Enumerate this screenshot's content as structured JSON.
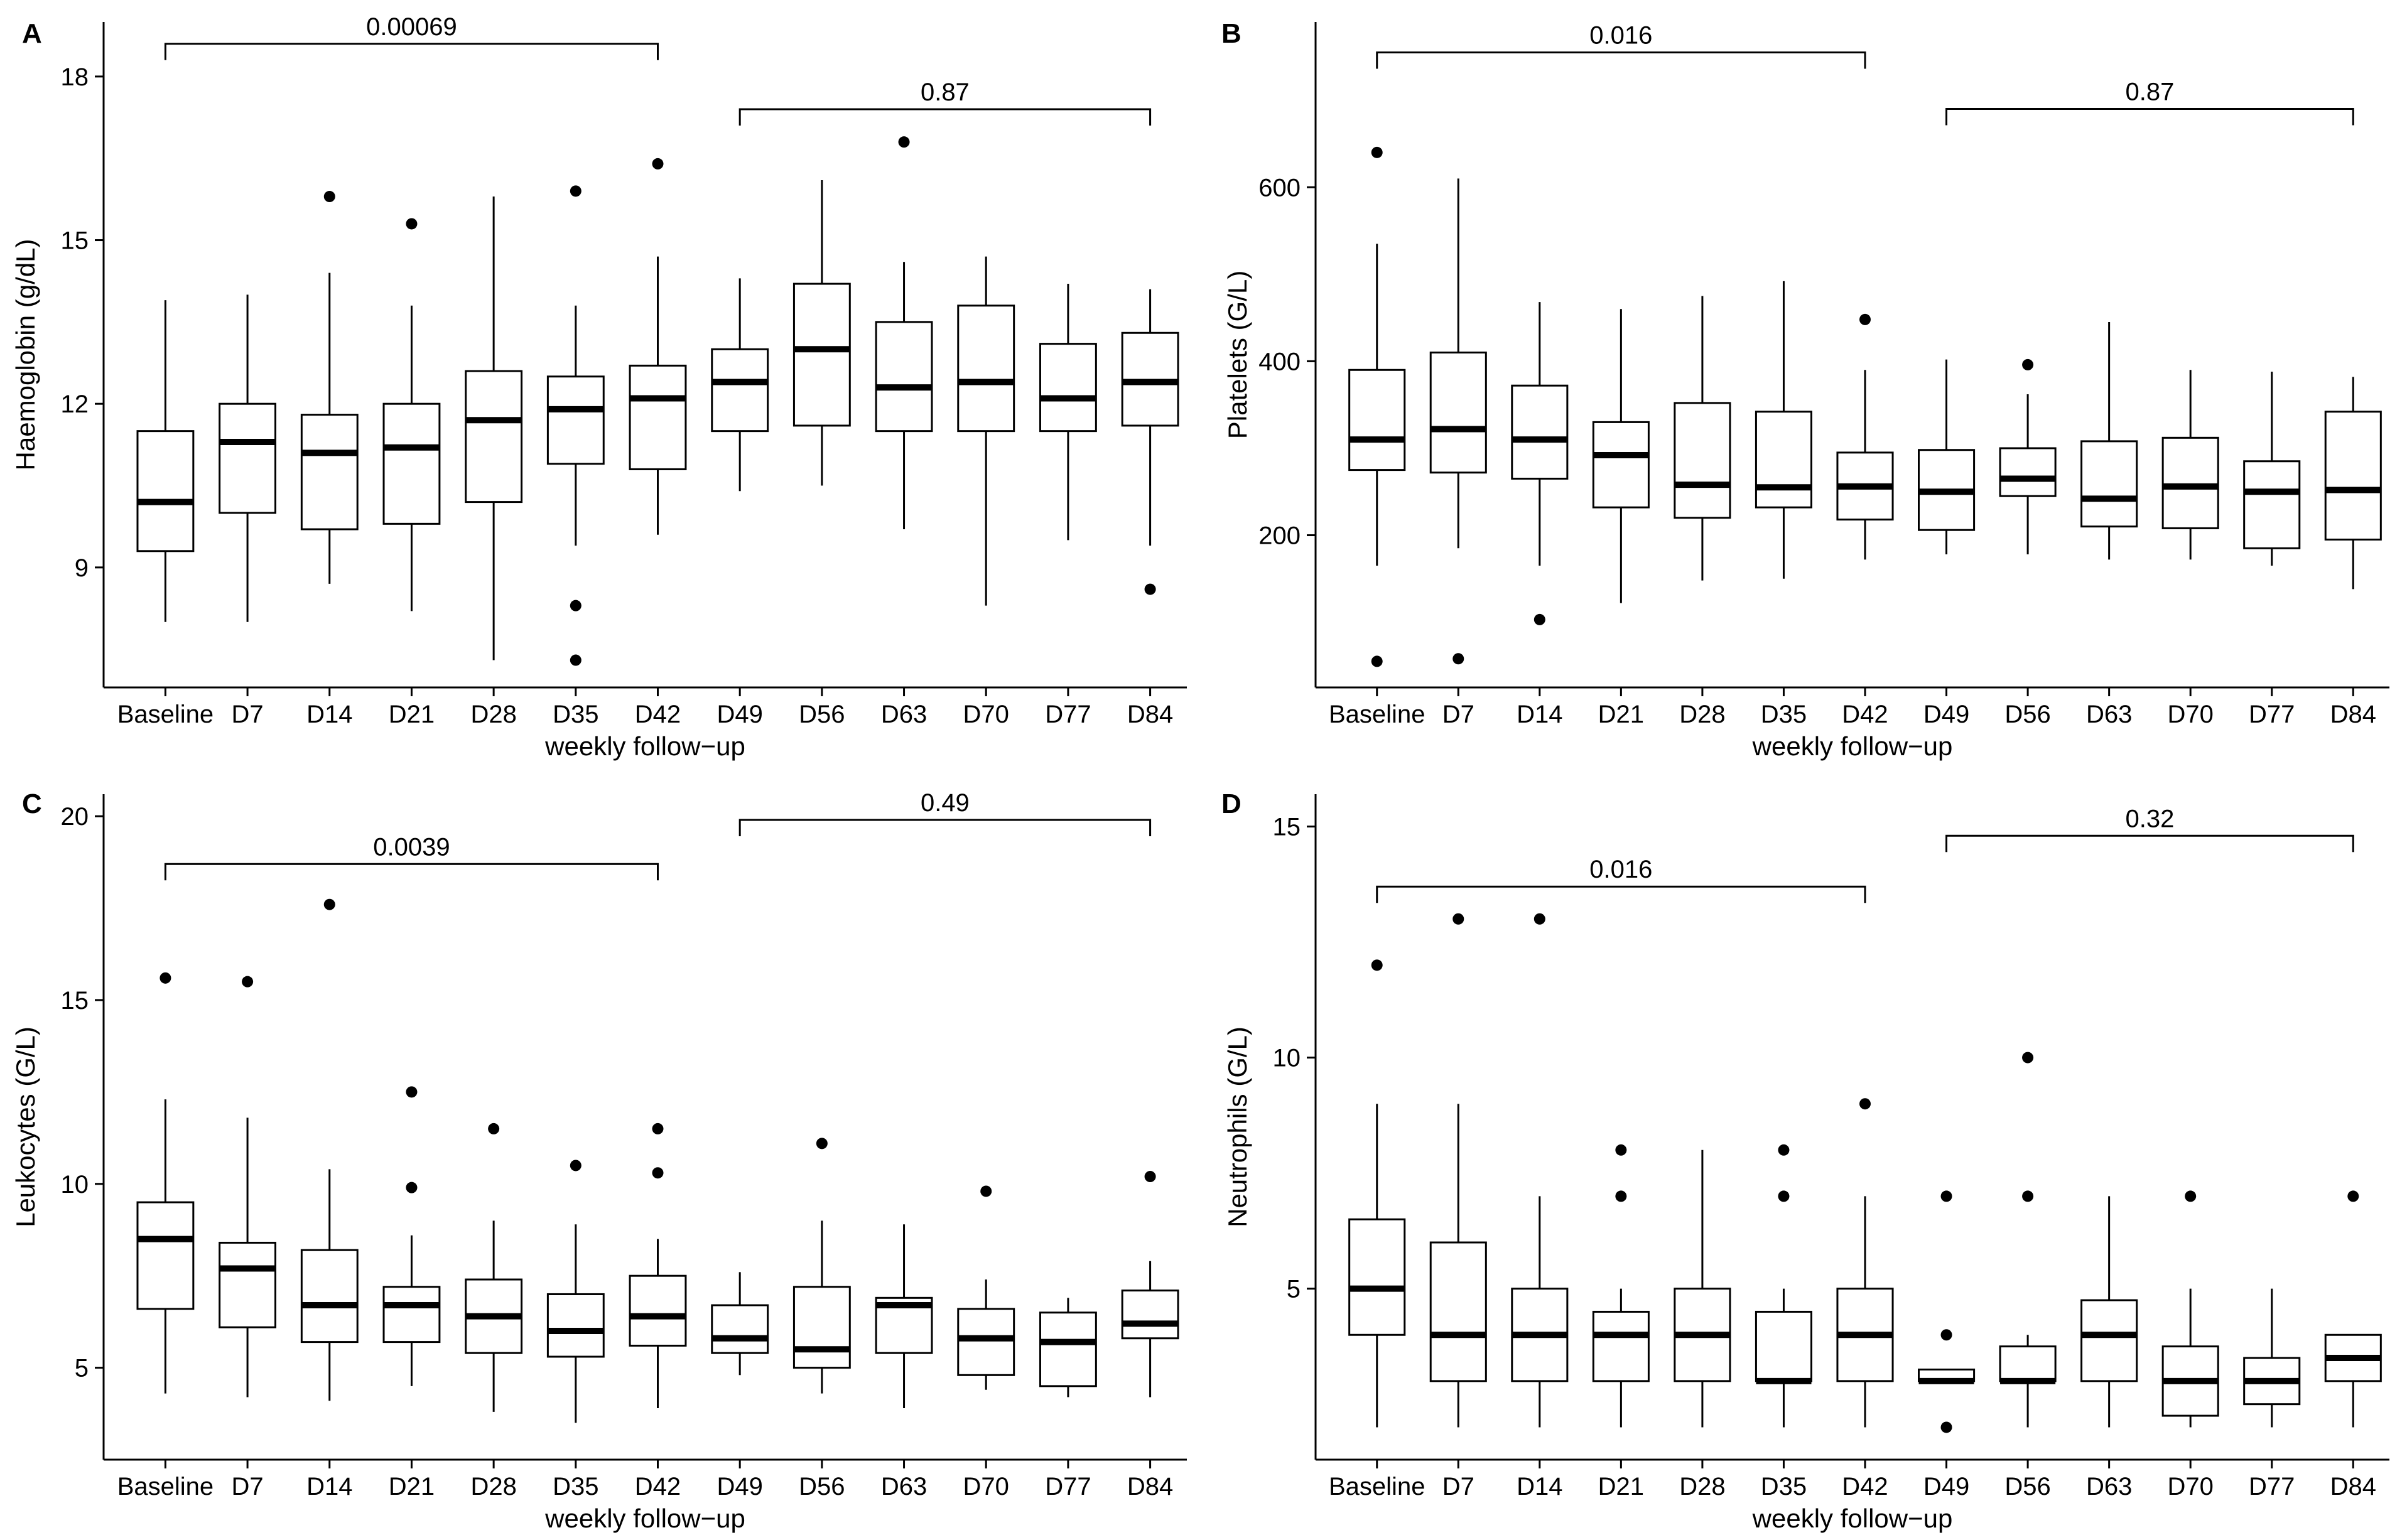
{
  "chart_data": [
    {
      "type": "box",
      "panel": "A",
      "xlabel": "weekly follow−up",
      "ylabel": "Haemoglobin (g/dL)",
      "categories": [
        "Baseline",
        "D7",
        "D14",
        "D21",
        "D28",
        "D35",
        "D42",
        "D49",
        "D56",
        "D63",
        "D70",
        "D77",
        "D84"
      ],
      "ylim": [
        6.8,
        19.0
      ],
      "yticks": [
        9,
        12,
        15,
        18
      ],
      "boxes": [
        {
          "min": 8.0,
          "q1": 9.3,
          "median": 10.2,
          "q3": 11.5,
          "max": 13.9,
          "outliers": []
        },
        {
          "min": 8.0,
          "q1": 10.0,
          "median": 11.3,
          "q3": 12.0,
          "max": 14.0,
          "outliers": []
        },
        {
          "min": 8.7,
          "q1": 9.7,
          "median": 11.1,
          "q3": 11.8,
          "max": 14.4,
          "outliers": [
            15.8
          ]
        },
        {
          "min": 8.2,
          "q1": 9.8,
          "median": 11.2,
          "q3": 12.0,
          "max": 13.8,
          "outliers": [
            15.3
          ]
        },
        {
          "min": 7.3,
          "q1": 10.2,
          "median": 11.7,
          "q3": 12.6,
          "max": 15.8,
          "outliers": []
        },
        {
          "min": 9.4,
          "q1": 10.9,
          "median": 11.9,
          "q3": 12.5,
          "max": 13.8,
          "outliers": [
            15.9,
            8.3,
            7.3
          ]
        },
        {
          "min": 9.6,
          "q1": 10.8,
          "median": 12.1,
          "q3": 12.7,
          "max": 14.7,
          "outliers": [
            16.4
          ]
        },
        {
          "min": 10.4,
          "q1": 11.5,
          "median": 12.4,
          "q3": 13.0,
          "max": 14.3,
          "outliers": []
        },
        {
          "min": 10.5,
          "q1": 11.6,
          "median": 13.0,
          "q3": 14.2,
          "max": 16.1,
          "outliers": []
        },
        {
          "min": 9.7,
          "q1": 11.5,
          "median": 12.3,
          "q3": 13.5,
          "max": 14.6,
          "outliers": [
            16.8
          ]
        },
        {
          "min": 8.3,
          "q1": 11.5,
          "median": 12.4,
          "q3": 13.8,
          "max": 14.7,
          "outliers": []
        },
        {
          "min": 9.5,
          "q1": 11.5,
          "median": 12.1,
          "q3": 13.1,
          "max": 14.2,
          "outliers": []
        },
        {
          "min": 9.4,
          "q1": 11.6,
          "median": 12.4,
          "q3": 13.3,
          "max": 14.1,
          "outliers": [
            8.6
          ]
        }
      ],
      "comparisons": [
        {
          "from": "Baseline",
          "to": "D42",
          "label": "0.00069",
          "y": 18.6
        },
        {
          "from": "D49",
          "to": "D84",
          "label": "0.87",
          "y": 17.4
        }
      ]
    },
    {
      "type": "box",
      "panel": "B",
      "xlabel": "weekly follow−up",
      "ylabel": "Platelets (G/L)",
      "categories": [
        "Baseline",
        "D7",
        "D14",
        "D21",
        "D28",
        "D35",
        "D42",
        "D49",
        "D56",
        "D63",
        "D70",
        "D77",
        "D84"
      ],
      "ylim": [
        25,
        790
      ],
      "yticks": [
        200,
        400,
        600
      ],
      "boxes": [
        {
          "min": 165,
          "q1": 275,
          "median": 310,
          "q3": 390,
          "max": 535,
          "outliers": [
            640,
            55
          ]
        },
        {
          "min": 185,
          "q1": 272,
          "median": 322,
          "q3": 410,
          "max": 610,
          "outliers": [
            58
          ]
        },
        {
          "min": 165,
          "q1": 265,
          "median": 310,
          "q3": 372,
          "max": 468,
          "outliers": [
            103
          ]
        },
        {
          "min": 122,
          "q1": 232,
          "median": 292,
          "q3": 330,
          "max": 460,
          "outliers": []
        },
        {
          "min": 148,
          "q1": 220,
          "median": 258,
          "q3": 352,
          "max": 475,
          "outliers": []
        },
        {
          "min": 150,
          "q1": 232,
          "median": 255,
          "q3": 342,
          "max": 492,
          "outliers": []
        },
        {
          "min": 172,
          "q1": 218,
          "median": 256,
          "q3": 295,
          "max": 390,
          "outliers": [
            448
          ]
        },
        {
          "min": 178,
          "q1": 206,
          "median": 250,
          "q3": 298,
          "max": 402,
          "outliers": []
        },
        {
          "min": 178,
          "q1": 245,
          "median": 265,
          "q3": 300,
          "max": 362,
          "outliers": [
            396
          ]
        },
        {
          "min": 172,
          "q1": 210,
          "median": 242,
          "q3": 308,
          "max": 445,
          "outliers": []
        },
        {
          "min": 172,
          "q1": 208,
          "median": 256,
          "q3": 312,
          "max": 390,
          "outliers": []
        },
        {
          "min": 165,
          "q1": 185,
          "median": 250,
          "q3": 285,
          "max": 388,
          "outliers": []
        },
        {
          "min": 138,
          "q1": 195,
          "median": 252,
          "q3": 342,
          "max": 382,
          "outliers": []
        }
      ],
      "comparisons": [
        {
          "from": "Baseline",
          "to": "D42",
          "label": "0.016",
          "y": 755
        },
        {
          "from": "D49",
          "to": "D84",
          "label": "0.87",
          "y": 690
        }
      ]
    },
    {
      "type": "box",
      "panel": "C",
      "xlabel": "weekly follow−up",
      "ylabel": "Leukocytes (G/L)",
      "categories": [
        "Baseline",
        "D7",
        "D14",
        "D21",
        "D28",
        "D35",
        "D42",
        "D49",
        "D56",
        "D63",
        "D70",
        "D77",
        "D84"
      ],
      "ylim": [
        2.5,
        20.6
      ],
      "yticks": [
        5,
        10,
        15,
        20
      ],
      "boxes": [
        {
          "min": 4.3,
          "q1": 6.6,
          "median": 8.5,
          "q3": 9.5,
          "max": 12.3,
          "outliers": [
            15.6
          ]
        },
        {
          "min": 4.2,
          "q1": 6.1,
          "median": 7.7,
          "q3": 8.4,
          "max": 11.8,
          "outliers": [
            15.5
          ]
        },
        {
          "min": 4.1,
          "q1": 5.7,
          "median": 6.7,
          "q3": 8.2,
          "max": 10.4,
          "outliers": [
            17.6
          ]
        },
        {
          "min": 4.5,
          "q1": 5.7,
          "median": 6.7,
          "q3": 7.2,
          "max": 8.6,
          "outliers": [
            12.5,
            9.9
          ]
        },
        {
          "min": 3.8,
          "q1": 5.4,
          "median": 6.4,
          "q3": 7.4,
          "max": 9.0,
          "outliers": [
            11.5
          ]
        },
        {
          "min": 3.5,
          "q1": 5.3,
          "median": 6.0,
          "q3": 7.0,
          "max": 8.9,
          "outliers": [
            10.5
          ]
        },
        {
          "min": 3.9,
          "q1": 5.6,
          "median": 6.4,
          "q3": 7.5,
          "max": 8.5,
          "outliers": [
            11.5,
            10.3
          ]
        },
        {
          "min": 4.8,
          "q1": 5.4,
          "median": 5.8,
          "q3": 6.7,
          "max": 7.6,
          "outliers": []
        },
        {
          "min": 4.3,
          "q1": 5.0,
          "median": 5.5,
          "q3": 7.2,
          "max": 9.0,
          "outliers": [
            11.1
          ]
        },
        {
          "min": 3.9,
          "q1": 5.4,
          "median": 6.7,
          "q3": 6.9,
          "max": 8.9,
          "outliers": []
        },
        {
          "min": 4.4,
          "q1": 4.8,
          "median": 5.8,
          "q3": 6.6,
          "max": 7.4,
          "outliers": [
            9.8
          ]
        },
        {
          "min": 4.2,
          "q1": 4.5,
          "median": 5.7,
          "q3": 6.5,
          "max": 6.9,
          "outliers": []
        },
        {
          "min": 4.2,
          "q1": 5.8,
          "median": 6.2,
          "q3": 7.1,
          "max": 7.9,
          "outliers": [
            10.2
          ]
        }
      ],
      "comparisons": [
        {
          "from": "Baseline",
          "to": "D42",
          "label": "0.0039",
          "y": 18.7
        },
        {
          "from": "D49",
          "to": "D84",
          "label": "0.49",
          "y": 19.9
        }
      ]
    },
    {
      "type": "box",
      "panel": "D",
      "xlabel": "weekly follow−up",
      "ylabel": "Neutrophils (G/L)",
      "categories": [
        "Baseline",
        "D7",
        "D14",
        "D21",
        "D28",
        "D35",
        "D42",
        "D49",
        "D56",
        "D63",
        "D70",
        "D77",
        "D84"
      ],
      "ylim": [
        1.3,
        15.7
      ],
      "yticks": [
        5,
        10,
        15
      ],
      "boxes": [
        {
          "min": 2.0,
          "q1": 4.0,
          "median": 5.0,
          "q3": 6.5,
          "max": 9.0,
          "outliers": [
            12.0
          ]
        },
        {
          "min": 2.0,
          "q1": 3.0,
          "median": 4.0,
          "q3": 6.0,
          "max": 9.0,
          "outliers": [
            13.0
          ]
        },
        {
          "min": 2.0,
          "q1": 3.0,
          "median": 4.0,
          "q3": 5.0,
          "max": 7.0,
          "outliers": [
            13.0
          ]
        },
        {
          "min": 2.0,
          "q1": 3.0,
          "median": 4.0,
          "q3": 4.5,
          "max": 5.0,
          "outliers": [
            8.0,
            7.0
          ]
        },
        {
          "min": 2.0,
          "q1": 3.0,
          "median": 4.0,
          "q3": 5.0,
          "max": 8.0,
          "outliers": []
        },
        {
          "min": 2.0,
          "q1": 3.0,
          "median": 3.0,
          "q3": 4.5,
          "max": 5.0,
          "outliers": [
            8.0,
            7.0
          ]
        },
        {
          "min": 2.0,
          "q1": 3.0,
          "median": 4.0,
          "q3": 5.0,
          "max": 7.0,
          "outliers": [
            9.0
          ]
        },
        {
          "min": 3.0,
          "q1": 3.0,
          "median": 3.0,
          "q3": 3.25,
          "max": 3.25,
          "outliers": [
            7.0,
            4.0,
            2.0
          ]
        },
        {
          "min": 2.0,
          "q1": 3.0,
          "median": 3.0,
          "q3": 3.75,
          "max": 4.0,
          "outliers": [
            10.0,
            7.0
          ]
        },
        {
          "min": 2.0,
          "q1": 3.0,
          "median": 4.0,
          "q3": 4.75,
          "max": 7.0,
          "outliers": []
        },
        {
          "min": 2.0,
          "q1": 2.25,
          "median": 3.0,
          "q3": 3.75,
          "max": 5.0,
          "outliers": [
            7.0
          ]
        },
        {
          "min": 2.0,
          "q1": 2.5,
          "median": 3.0,
          "q3": 3.5,
          "max": 5.0,
          "outliers": []
        },
        {
          "min": 2.0,
          "q1": 3.0,
          "median": 3.5,
          "q3": 4.0,
          "max": 4.0,
          "outliers": [
            7.0
          ]
        }
      ],
      "comparisons": [
        {
          "from": "Baseline",
          "to": "D42",
          "label": "0.016",
          "y": 13.7
        },
        {
          "from": "D49",
          "to": "D84",
          "label": "0.32",
          "y": 14.8
        }
      ]
    }
  ]
}
